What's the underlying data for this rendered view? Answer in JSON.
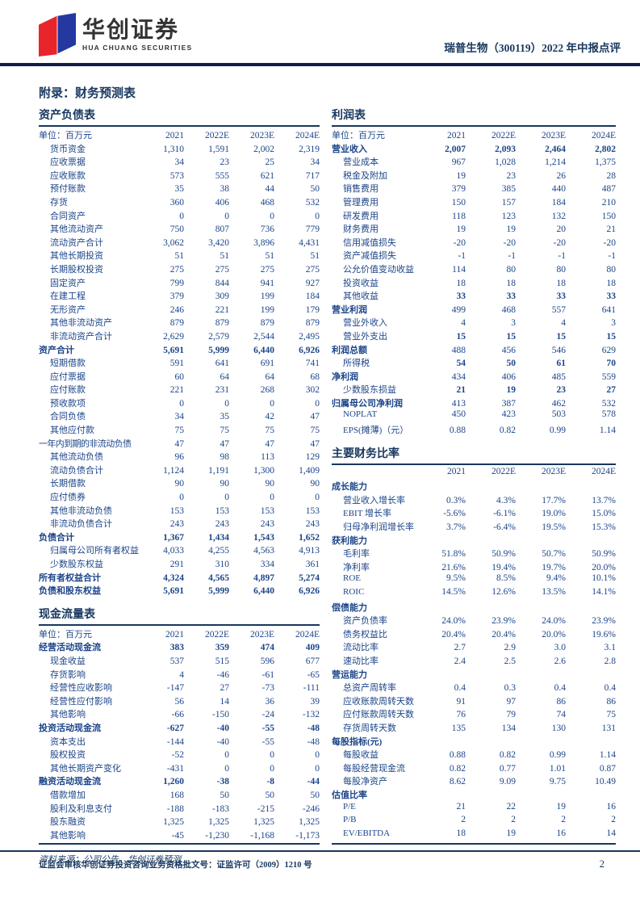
{
  "colors": {
    "navy": "#17375e",
    "table_text": "#1b4489",
    "logo_red": "#e8252a",
    "logo_blue": "#2438a0",
    "header_rule": "#131c45"
  },
  "header": {
    "logo_cn": "华创证券",
    "logo_en": "HUA CHUANG SECURITIES",
    "report_title": "瑞普生物（300119）2022 年中报点评"
  },
  "page": {
    "appendix_title": "附录：财务预测表",
    "source_note": "资料来源：公司公告，华创证券预测",
    "footer_text": "证监会审核华创证券投资咨询业务资格批文号：证监许可（2009）1210 号",
    "page_number": "2"
  },
  "tables": {
    "balance_sheet": {
      "title": "资产负债表",
      "unit_label": "单位：百万元",
      "columns": [
        "2021",
        "2022E",
        "2023E",
        "2024E"
      ],
      "rows": [
        {
          "label": "货币资金",
          "v": [
            "1,310",
            "1,591",
            "2,002",
            "2,319"
          ]
        },
        {
          "label": "应收票据",
          "v": [
            "34",
            "23",
            "25",
            "34"
          ]
        },
        {
          "label": "应收账款",
          "v": [
            "573",
            "555",
            "621",
            "717"
          ]
        },
        {
          "label": "预付账款",
          "v": [
            "35",
            "38",
            "44",
            "50"
          ]
        },
        {
          "label": "存货",
          "v": [
            "360",
            "406",
            "468",
            "532"
          ]
        },
        {
          "label": "合同资产",
          "v": [
            "0",
            "0",
            "0",
            "0"
          ]
        },
        {
          "label": "其他流动资产",
          "v": [
            "750",
            "807",
            "736",
            "779"
          ]
        },
        {
          "label": "流动资产合计",
          "v": [
            "3,062",
            "3,420",
            "3,896",
            "4,431"
          ]
        },
        {
          "label": "其他长期投资",
          "v": [
            "51",
            "51",
            "51",
            "51"
          ]
        },
        {
          "label": "长期股权投资",
          "v": [
            "275",
            "275",
            "275",
            "275"
          ]
        },
        {
          "label": "固定资产",
          "v": [
            "799",
            "844",
            "941",
            "927"
          ]
        },
        {
          "label": "在建工程",
          "v": [
            "379",
            "309",
            "199",
            "184"
          ]
        },
        {
          "label": "无形资产",
          "v": [
            "246",
            "221",
            "199",
            "179"
          ]
        },
        {
          "label": "其他非流动资产",
          "v": [
            "879",
            "879",
            "879",
            "879"
          ]
        },
        {
          "label": "非流动资产合计",
          "v": [
            "2,629",
            "2,579",
            "2,544",
            "2,495"
          ]
        },
        {
          "label": "资产合计",
          "v": [
            "5,691",
            "5,999",
            "6,440",
            "6,926"
          ],
          "style": "total"
        },
        {
          "label": "短期借款",
          "v": [
            "591",
            "641",
            "691",
            "741"
          ]
        },
        {
          "label": "应付票据",
          "v": [
            "60",
            "64",
            "64",
            "68"
          ]
        },
        {
          "label": "应付账款",
          "v": [
            "221",
            "231",
            "268",
            "302"
          ]
        },
        {
          "label": "预收款项",
          "v": [
            "0",
            "0",
            "0",
            "0"
          ]
        },
        {
          "label": "合同负债",
          "v": [
            "34",
            "35",
            "42",
            "47"
          ]
        },
        {
          "label": "其他应付款",
          "v": [
            "75",
            "75",
            "75",
            "75"
          ]
        },
        {
          "label": "一年内到期的非流动负债",
          "v": [
            "47",
            "47",
            "47",
            "47"
          ],
          "style": "flush"
        },
        {
          "label": "其他流动负债",
          "v": [
            "96",
            "98",
            "113",
            "129"
          ]
        },
        {
          "label": "流动负债合计",
          "v": [
            "1,124",
            "1,191",
            "1,300",
            "1,409"
          ]
        },
        {
          "label": "长期借款",
          "v": [
            "90",
            "90",
            "90",
            "90"
          ]
        },
        {
          "label": "应付债券",
          "v": [
            "0",
            "0",
            "0",
            "0"
          ]
        },
        {
          "label": "其他非流动负债",
          "v": [
            "153",
            "153",
            "153",
            "153"
          ]
        },
        {
          "label": "非流动负债合计",
          "v": [
            "243",
            "243",
            "243",
            "243"
          ]
        },
        {
          "label": "负债合计",
          "v": [
            "1,367",
            "1,434",
            "1,543",
            "1,652"
          ],
          "style": "total"
        },
        {
          "label": "归属母公司所有者权益",
          "v": [
            "4,033",
            "4,255",
            "4,563",
            "4,913"
          ]
        },
        {
          "label": "少数股东权益",
          "v": [
            "291",
            "310",
            "334",
            "361"
          ]
        },
        {
          "label": "所有者权益合计",
          "v": [
            "4,324",
            "4,565",
            "4,897",
            "5,274"
          ],
          "style": "total"
        },
        {
          "label": "负债和股东权益",
          "v": [
            "5,691",
            "5,999",
            "6,440",
            "6,926"
          ],
          "style": "total"
        }
      ]
    },
    "cash_flow": {
      "title": "现金流量表",
      "unit_label": "单位：百万元",
      "columns": [
        "2021",
        "2022E",
        "2023E",
        "2024E"
      ],
      "rows": [
        {
          "label": "经营活动现金流",
          "v": [
            "383",
            "359",
            "474",
            "409"
          ],
          "style": "total"
        },
        {
          "label": "现金收益",
          "v": [
            "537",
            "515",
            "596",
            "677"
          ]
        },
        {
          "label": "存货影响",
          "v": [
            "4",
            "-46",
            "-61",
            "-65"
          ]
        },
        {
          "label": "经营性应收影响",
          "v": [
            "-147",
            "27",
            "-73",
            "-111"
          ]
        },
        {
          "label": "经营性应付影响",
          "v": [
            "56",
            "14",
            "36",
            "39"
          ]
        },
        {
          "label": "其他影响",
          "v": [
            "-66",
            "-150",
            "-24",
            "-132"
          ]
        },
        {
          "label": "投资活动现金流",
          "v": [
            "-627",
            "-40",
            "-55",
            "-48"
          ],
          "style": "total"
        },
        {
          "label": "资本支出",
          "v": [
            "-144",
            "-40",
            "-55",
            "-48"
          ]
        },
        {
          "label": "股权投资",
          "v": [
            "-52",
            "0",
            "0",
            "0"
          ]
        },
        {
          "label": "其他长期资产变化",
          "v": [
            "-431",
            "0",
            "0",
            "0"
          ]
        },
        {
          "label": "融资活动现金流",
          "v": [
            "1,260",
            "-38",
            "-8",
            "-44"
          ],
          "style": "total"
        },
        {
          "label": "借款增加",
          "v": [
            "168",
            "50",
            "50",
            "50"
          ]
        },
        {
          "label": "股利及利息支付",
          "v": [
            "-188",
            "-183",
            "-215",
            "-246"
          ]
        },
        {
          "label": "股东融资",
          "v": [
            "1,325",
            "1,325",
            "1,325",
            "1,325"
          ]
        },
        {
          "label": "其他影响",
          "v": [
            "-45",
            "-1,230",
            "-1,168",
            "-1,173"
          ]
        }
      ]
    },
    "income": {
      "title": "利润表",
      "unit_label": "单位：百万元",
      "columns": [
        "2021",
        "2022E",
        "2023E",
        "2024E"
      ],
      "rows": [
        {
          "label": "营业收入",
          "v": [
            "2,007",
            "2,093",
            "2,464",
            "2,802"
          ],
          "style": "total"
        },
        {
          "label": "营业成本",
          "v": [
            "967",
            "1,028",
            "1,214",
            "1,375"
          ]
        },
        {
          "label": "税金及附加",
          "v": [
            "19",
            "23",
            "26",
            "28"
          ]
        },
        {
          "label": "销售费用",
          "v": [
            "379",
            "385",
            "440",
            "487"
          ]
        },
        {
          "label": "管理费用",
          "v": [
            "150",
            "157",
            "184",
            "210"
          ]
        },
        {
          "label": "研发费用",
          "v": [
            "118",
            "123",
            "132",
            "150"
          ]
        },
        {
          "label": "财务费用",
          "v": [
            "19",
            "19",
            "20",
            "21"
          ]
        },
        {
          "label": "信用减值损失",
          "v": [
            "-20",
            "-20",
            "-20",
            "-20"
          ]
        },
        {
          "label": "资产减值损失",
          "v": [
            "-1",
            "-1",
            "-1",
            "-1"
          ]
        },
        {
          "label": "公允价值变动收益",
          "v": [
            "114",
            "80",
            "80",
            "80"
          ]
        },
        {
          "label": "投资收益",
          "v": [
            "18",
            "18",
            "18",
            "18"
          ]
        },
        {
          "label": "其他收益",
          "v": [
            "33",
            "33",
            "33",
            "33"
          ],
          "style": "values-bold"
        },
        {
          "label": "营业利润",
          "v": [
            "499",
            "468",
            "557",
            "641"
          ],
          "style": "label-bold"
        },
        {
          "label": "营业外收入",
          "v": [
            "4",
            "3",
            "4",
            "3"
          ]
        },
        {
          "label": "营业外支出",
          "v": [
            "15",
            "15",
            "15",
            "15"
          ],
          "style": "values-bold"
        },
        {
          "label": "利润总额",
          "v": [
            "488",
            "456",
            "546",
            "629"
          ],
          "style": "label-bold"
        },
        {
          "label": "所得税",
          "v": [
            "54",
            "50",
            "61",
            "70"
          ],
          "style": "values-bold"
        },
        {
          "label": "净利润",
          "v": [
            "434",
            "406",
            "485",
            "559"
          ],
          "style": "label-bold"
        },
        {
          "label": "少数股东损益",
          "v": [
            "21",
            "19",
            "23",
            "27"
          ],
          "style": "values-bold"
        },
        {
          "label": "归属母公司净利润",
          "v": [
            "413",
            "387",
            "462",
            "532"
          ],
          "style": "label-bold"
        },
        {
          "label": "NOPLAT",
          "v": [
            "450",
            "423",
            "503",
            "578"
          ]
        },
        {
          "label": "EPS(摊薄)（元）",
          "v": [
            "0.88",
            "0.82",
            "0.99",
            "1.14"
          ]
        }
      ]
    },
    "ratios": {
      "title": "主要财务比率",
      "unit_label": "",
      "columns": [
        "2021",
        "2022E",
        "2023E",
        "2024E"
      ],
      "rows": [
        {
          "label": "成长能力",
          "style": "section"
        },
        {
          "label": "营业收入增长率",
          "v": [
            "0.3%",
            "4.3%",
            "17.7%",
            "13.7%"
          ]
        },
        {
          "label": "EBIT 增长率",
          "v": [
            "-5.6%",
            "-6.1%",
            "19.0%",
            "15.0%"
          ]
        },
        {
          "label": "归母净利润增长率",
          "v": [
            "3.7%",
            "-6.4%",
            "19.5%",
            "15.3%"
          ]
        },
        {
          "label": "获利能力",
          "style": "section"
        },
        {
          "label": "毛利率",
          "v": [
            "51.8%",
            "50.9%",
            "50.7%",
            "50.9%"
          ]
        },
        {
          "label": "净利率",
          "v": [
            "21.6%",
            "19.4%",
            "19.7%",
            "20.0%"
          ]
        },
        {
          "label": "ROE",
          "v": [
            "9.5%",
            "8.5%",
            "9.4%",
            "10.1%"
          ]
        },
        {
          "label": "ROIC",
          "v": [
            "14.5%",
            "12.6%",
            "13.5%",
            "14.1%"
          ]
        },
        {
          "label": "偿债能力",
          "style": "section"
        },
        {
          "label": "资产负债率",
          "v": [
            "24.0%",
            "23.9%",
            "24.0%",
            "23.9%"
          ]
        },
        {
          "label": "债务权益比",
          "v": [
            "20.4%",
            "20.4%",
            "20.0%",
            "19.6%"
          ]
        },
        {
          "label": "流动比率",
          "v": [
            "2.7",
            "2.9",
            "3.0",
            "3.1"
          ]
        },
        {
          "label": "速动比率",
          "v": [
            "2.4",
            "2.5",
            "2.6",
            "2.8"
          ]
        },
        {
          "label": "营运能力",
          "style": "section"
        },
        {
          "label": "总资产周转率",
          "v": [
            "0.4",
            "0.3",
            "0.4",
            "0.4"
          ]
        },
        {
          "label": "应收账款周转天数",
          "v": [
            "91",
            "97",
            "86",
            "86"
          ]
        },
        {
          "label": "应付账款周转天数",
          "v": [
            "76",
            "79",
            "74",
            "75"
          ]
        },
        {
          "label": "存货周转天数",
          "v": [
            "135",
            "134",
            "130",
            "131"
          ]
        },
        {
          "label": "每股指标(元)",
          "style": "section"
        },
        {
          "label": "每股收益",
          "v": [
            "0.88",
            "0.82",
            "0.99",
            "1.14"
          ]
        },
        {
          "label": "每股经营现金流",
          "v": [
            "0.82",
            "0.77",
            "1.01",
            "0.87"
          ]
        },
        {
          "label": "每股净资产",
          "v": [
            "8.62",
            "9.09",
            "9.75",
            "10.49"
          ]
        },
        {
          "label": "估值比率",
          "style": "section"
        },
        {
          "label": "P/E",
          "v": [
            "21",
            "22",
            "19",
            "16"
          ]
        },
        {
          "label": "P/B",
          "v": [
            "2",
            "2",
            "2",
            "2"
          ]
        },
        {
          "label": "EV/EBITDA",
          "v": [
            "18",
            "19",
            "16",
            "14"
          ]
        }
      ]
    }
  }
}
